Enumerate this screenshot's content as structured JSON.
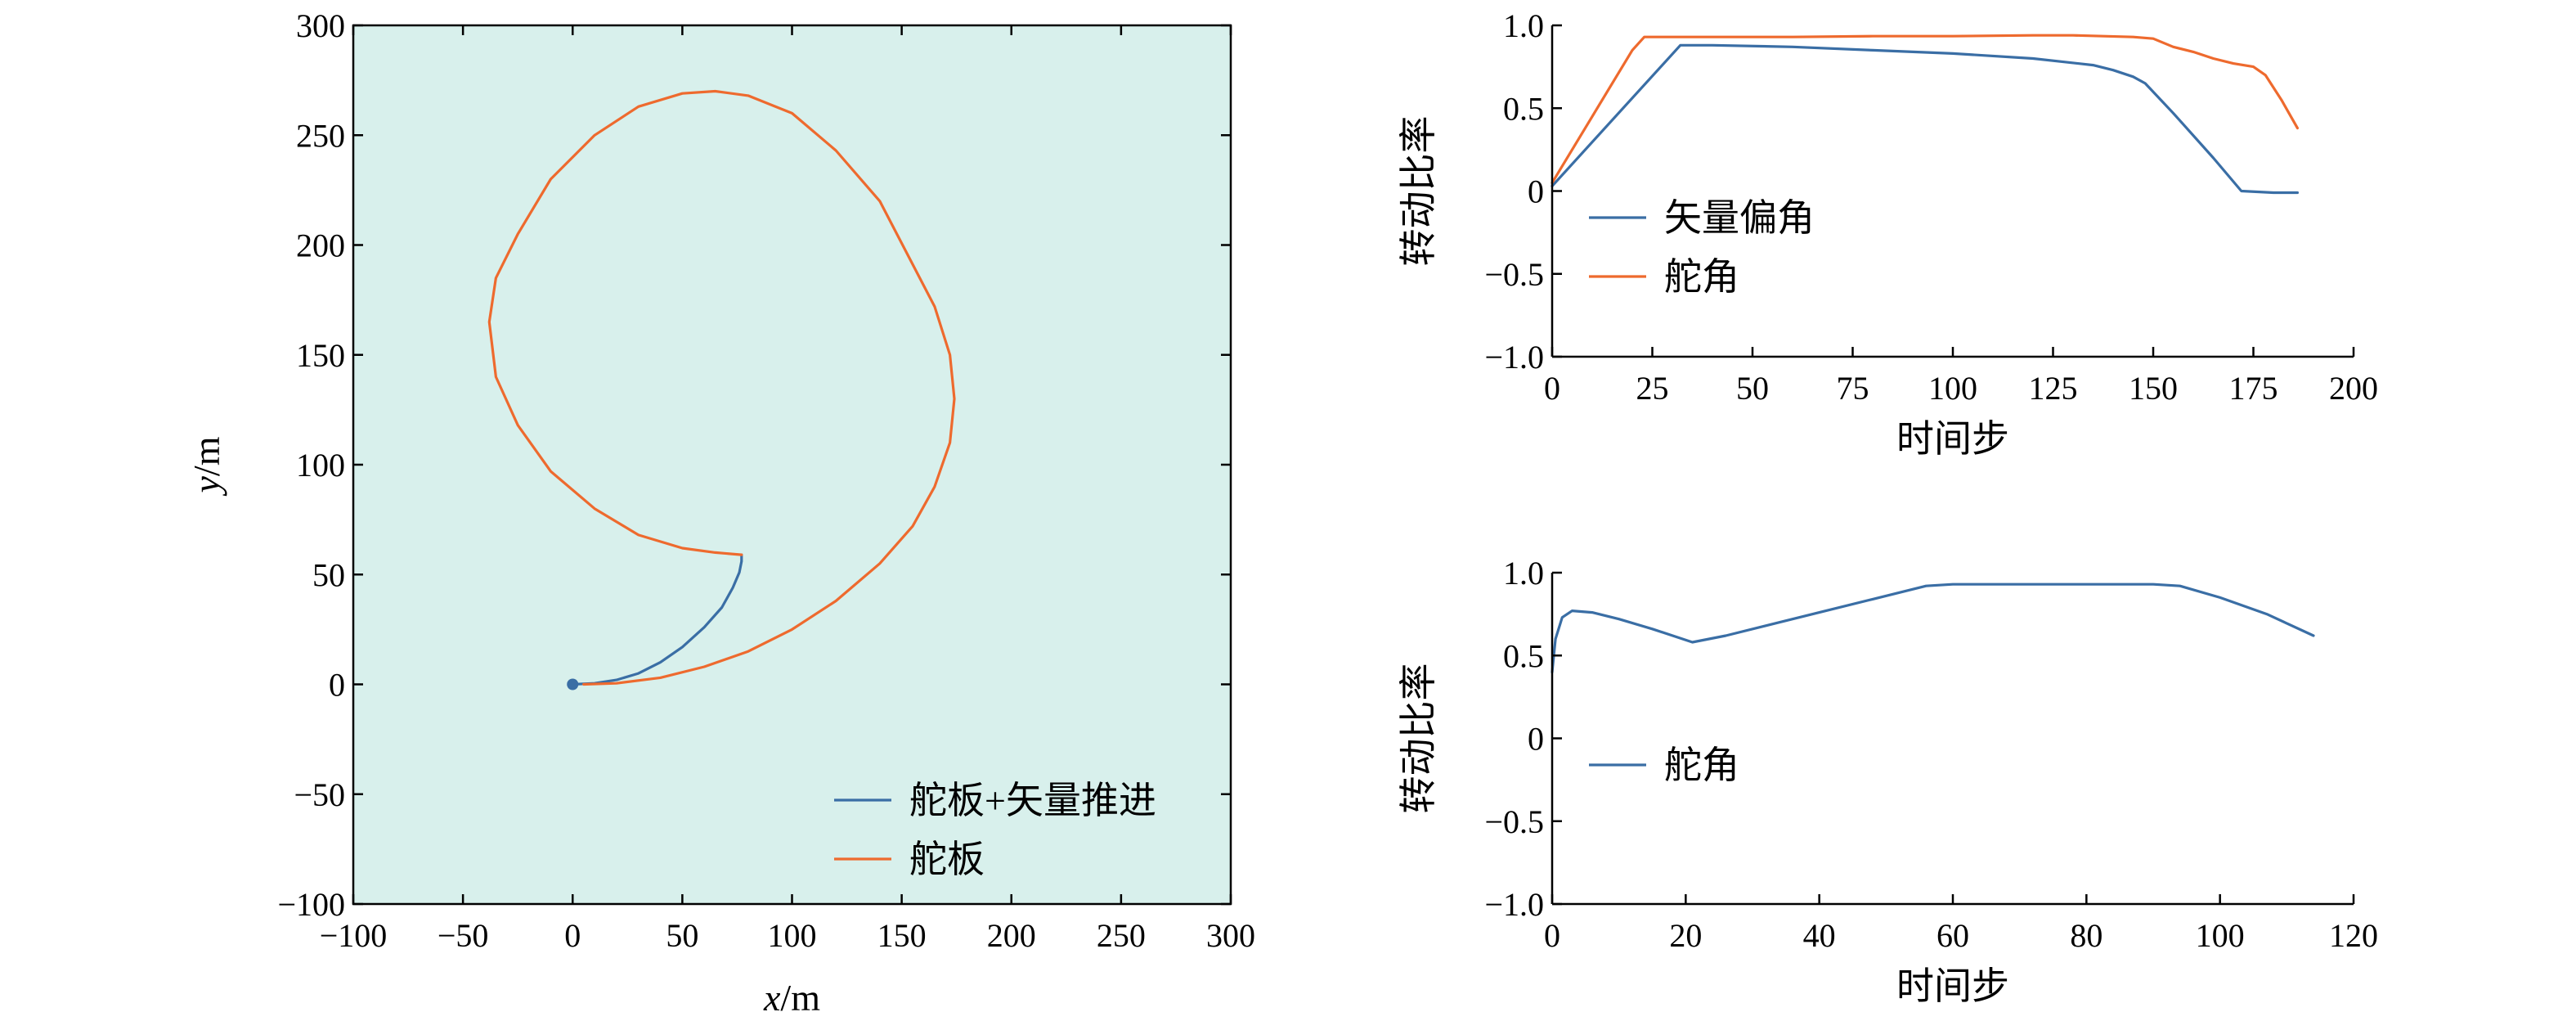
{
  "colors": {
    "blue": "#3a6ea5",
    "orange": "#ee6a2e",
    "plot_bg": "#d8f0ec",
    "axis": "#000000"
  },
  "chart_data": [
    {
      "id": "trajectory",
      "type": "line",
      "xlabel_var": "x",
      "xlabel_unit": "/m",
      "ylabel_var": "y",
      "ylabel_unit": "/m",
      "xlim": [
        -100,
        300
      ],
      "ylim": [
        -100,
        300
      ],
      "xticks": [
        -100,
        -50,
        0,
        50,
        100,
        150,
        200,
        250,
        300
      ],
      "yticks": [
        -100,
        -50,
        0,
        50,
        100,
        150,
        200,
        250,
        300
      ],
      "xtick_labels": [
        "−100",
        "−50",
        "0",
        "50",
        "100",
        "150",
        "200",
        "250",
        "300"
      ],
      "ytick_labels": [
        "−100",
        "−50",
        "0",
        "50",
        "100",
        "150",
        "200",
        "250",
        "300"
      ],
      "grid": false,
      "legend_position": "bottom-right",
      "start_point": {
        "x": 0,
        "y": 0
      },
      "series": [
        {
          "name": "舵板+矢量推进",
          "color": "#3a6ea5",
          "x": [
            0,
            10,
            20,
            30,
            40,
            50,
            60,
            68,
            73,
            76,
            77,
            77
          ],
          "y": [
            0,
            0.5,
            2,
            5,
            10,
            17,
            26,
            35,
            44,
            51,
            56,
            59
          ]
        },
        {
          "name": "舵板",
          "color": "#ee6a2e",
          "x": [
            5,
            20,
            40,
            60,
            80,
            100,
            120,
            140,
            155,
            165,
            172,
            174,
            172,
            165,
            153,
            140,
            120,
            100,
            80,
            65,
            50,
            30,
            10,
            -10,
            -25,
            -35,
            -38,
            -35,
            -25,
            -10,
            10,
            30,
            50,
            65,
            77
          ],
          "y": [
            0,
            0.5,
            3,
            8,
            15,
            25,
            38,
            55,
            72,
            90,
            110,
            130,
            150,
            172,
            195,
            220,
            243,
            260,
            268,
            270,
            269,
            263,
            250,
            230,
            205,
            185,
            165,
            140,
            118,
            97,
            80,
            68,
            62,
            60,
            59
          ]
        }
      ]
    },
    {
      "id": "top-right",
      "type": "line",
      "xlabel": "时间步",
      "ylabel": "转动比率",
      "xlim": [
        0,
        200
      ],
      "ylim": [
        -1.0,
        1.0
      ],
      "xticks": [
        0,
        25,
        50,
        75,
        100,
        125,
        150,
        175,
        200
      ],
      "yticks": [
        -1.0,
        -0.5,
        0,
        0.5,
        1.0
      ],
      "xtick_labels": [
        "0",
        "25",
        "50",
        "75",
        "100",
        "125",
        "150",
        "175",
        "200"
      ],
      "ytick_labels": [
        "−1.0",
        "−0.5",
        "0",
        "0.5",
        "1.0"
      ],
      "grid": false,
      "legend_position": "lower-left",
      "series": [
        {
          "name": "矢量偏角",
          "color": "#3a6ea5",
          "x": [
            0,
            32,
            40,
            60,
            80,
            100,
            120,
            135,
            140,
            145,
            148,
            155,
            165,
            172,
            180,
            186
          ],
          "y": [
            0.03,
            0.88,
            0.88,
            0.87,
            0.85,
            0.83,
            0.8,
            0.76,
            0.73,
            0.69,
            0.65,
            0.47,
            0.2,
            0.0,
            -0.01,
            -0.01
          ]
        },
        {
          "name": "舵角",
          "color": "#ee6a2e",
          "x": [
            0,
            10,
            20,
            23,
            26,
            40,
            60,
            80,
            100,
            120,
            130,
            145,
            150,
            155,
            160,
            165,
            170,
            175,
            178,
            182,
            186
          ],
          "y": [
            0.05,
            0.45,
            0.85,
            0.93,
            0.93,
            0.93,
            0.93,
            0.935,
            0.935,
            0.94,
            0.94,
            0.93,
            0.92,
            0.87,
            0.84,
            0.8,
            0.77,
            0.75,
            0.7,
            0.55,
            0.38
          ]
        }
      ]
    },
    {
      "id": "bottom-right",
      "type": "line",
      "xlabel": "时间步",
      "ylabel": "转动比率",
      "xlim": [
        0,
        120
      ],
      "ylim": [
        -1.0,
        1.0
      ],
      "xticks": [
        0,
        20,
        40,
        60,
        80,
        100,
        120
      ],
      "yticks": [
        -1.0,
        -0.5,
        0,
        0.5,
        1.0
      ],
      "xtick_labels": [
        "0",
        "20",
        "40",
        "60",
        "80",
        "100",
        "120"
      ],
      "ytick_labels": [
        "−1.0",
        "−0.5",
        "0",
        "0.5",
        "1.0"
      ],
      "grid": false,
      "legend_position": "lower-left",
      "series": [
        {
          "name": "舵角",
          "color": "#3a6ea5",
          "x": [
            0,
            0.5,
            1.5,
            3,
            6,
            10,
            15,
            21,
            26,
            32,
            40,
            48,
            56,
            60,
            70,
            80,
            90,
            94,
            100,
            107,
            114
          ],
          "y": [
            0.4,
            0.6,
            0.73,
            0.77,
            0.76,
            0.72,
            0.66,
            0.58,
            0.62,
            0.68,
            0.76,
            0.84,
            0.92,
            0.93,
            0.93,
            0.93,
            0.93,
            0.92,
            0.85,
            0.75,
            0.62
          ]
        }
      ]
    }
  ]
}
